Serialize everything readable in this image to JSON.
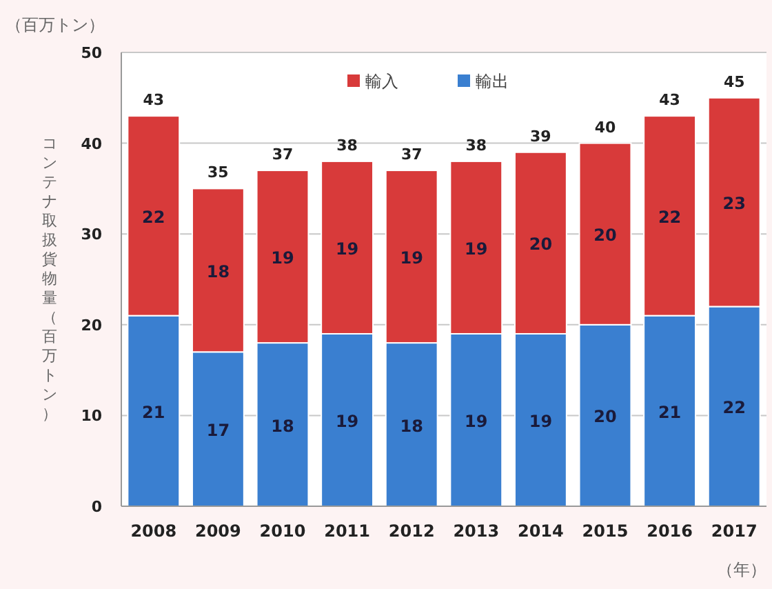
{
  "chart_data": {
    "type": "bar",
    "stacked": true,
    "categories": [
      "2008",
      "2009",
      "2010",
      "2011",
      "2012",
      "2013",
      "2014",
      "2015",
      "2016",
      "2017"
    ],
    "series": [
      {
        "name": "輸出",
        "color": "#3a7fd0",
        "values": [
          21,
          17,
          18,
          19,
          18,
          19,
          19,
          20,
          21,
          22
        ]
      },
      {
        "name": "輸入",
        "color": "#d83a3a",
        "values": [
          22,
          18,
          19,
          19,
          19,
          19,
          20,
          20,
          22,
          23
        ]
      }
    ],
    "totals": [
      "43",
      "35",
      "37",
      "38",
      "37",
      "38",
      "39",
      "40",
      "43",
      "45"
    ],
    "data_labels": true,
    "ylim": [
      0,
      50
    ],
    "yticks": [
      0,
      10,
      20,
      30,
      40,
      50
    ],
    "grid": "y",
    "legend": "top",
    "ylabel": "コンテナ取扱貨物量（百万トン）",
    "annotations": [
      "（百万トン）",
      "（年）"
    ]
  }
}
